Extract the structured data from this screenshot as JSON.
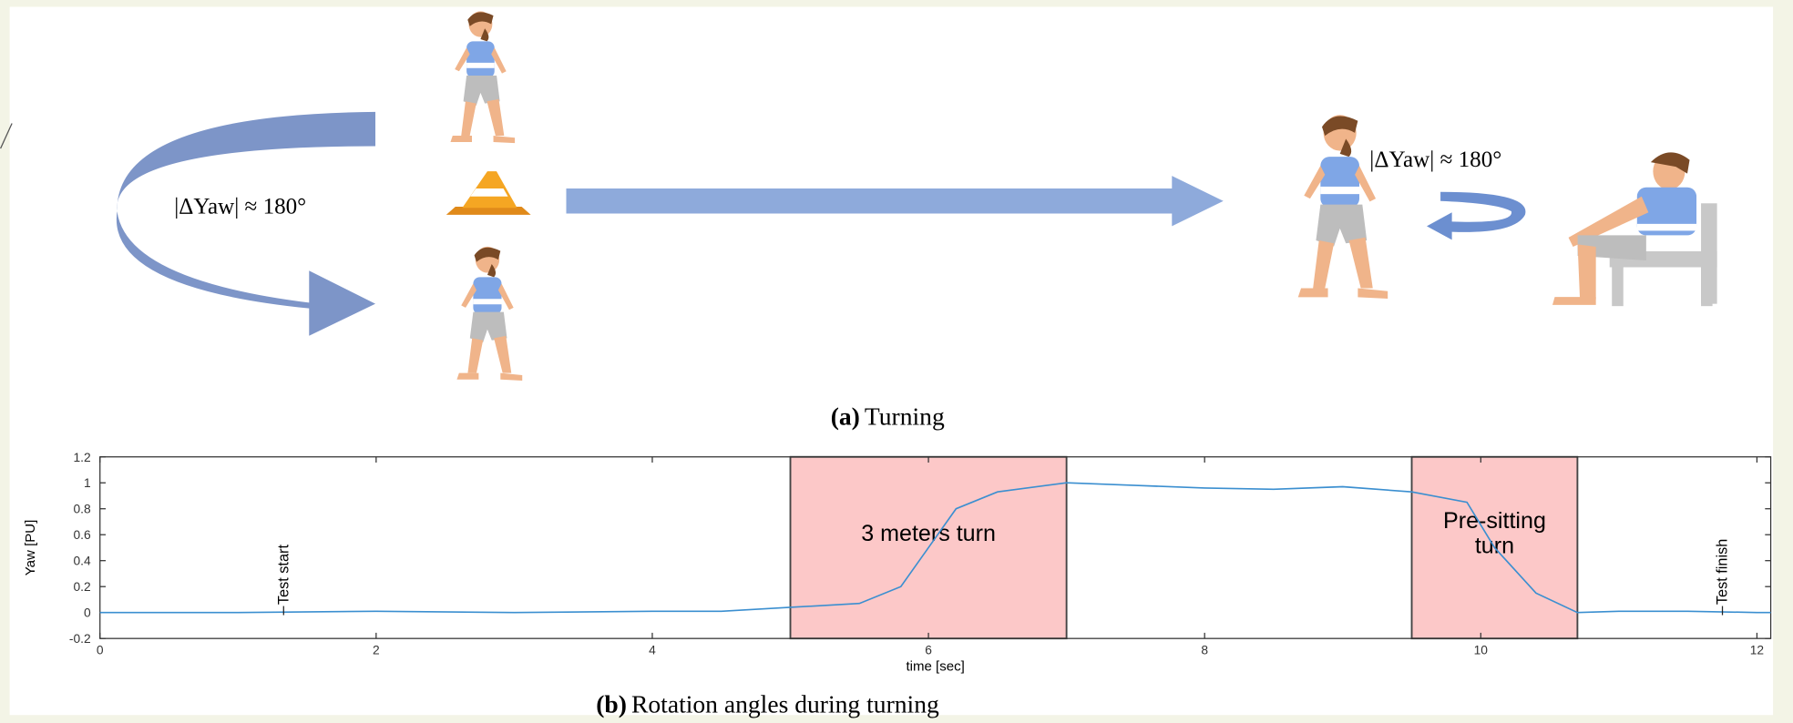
{
  "figure": {
    "panel_a": {
      "caption_label": "(a)",
      "caption": "Turning",
      "annotations": [
        "|ΔYaw| ≈ 180°",
        "|ΔYaw| ≈ 180°"
      ]
    },
    "panel_b": {
      "caption_label": "(b)",
      "caption": "Rotation angles during turning"
    }
  },
  "chart_data": {
    "type": "line",
    "x_label": "time [sec]",
    "y_label": "Yaw [PU]",
    "x": [
      0,
      1,
      2,
      3,
      4,
      4.5,
      5,
      5.5,
      5.8,
      6,
      6.2,
      6.5,
      7,
      7.5,
      8,
      8.5,
      9,
      9.5,
      9.9,
      10.1,
      10.4,
      10.7,
      11,
      11.5,
      12,
      12.1
    ],
    "values": [
      0,
      0,
      0.01,
      0,
      0.01,
      0.01,
      0.04,
      0.07,
      0.2,
      0.5,
      0.8,
      0.93,
      1.0,
      0.98,
      0.96,
      0.95,
      0.97,
      0.93,
      0.85,
      0.5,
      0.15,
      0,
      0.01,
      0.01,
      0,
      0
    ],
    "color": "#3b8fd0",
    "xlim": [
      0,
      12.1
    ],
    "ylim": [
      -0.2,
      1.2
    ],
    "xticks": [
      0,
      2,
      4,
      6,
      8,
      10,
      12
    ],
    "yticks": [
      -0.2,
      0,
      0.2,
      0.4,
      0.6,
      0.8,
      1,
      1.2
    ],
    "regions": [
      {
        "x": [
          5,
          7
        ],
        "label_lines": [
          "3 meters turn"
        ],
        "color": "#fcc8c8"
      },
      {
        "x": [
          9.5,
          10.7
        ],
        "label_lines": [
          "Pre-sitting",
          "turn"
        ],
        "color": "#fcc8c8"
      }
    ],
    "annotations": [
      {
        "text": "Test start",
        "x": 1.33
      },
      {
        "text": "Test finish",
        "x": 11.75
      }
    ]
  }
}
